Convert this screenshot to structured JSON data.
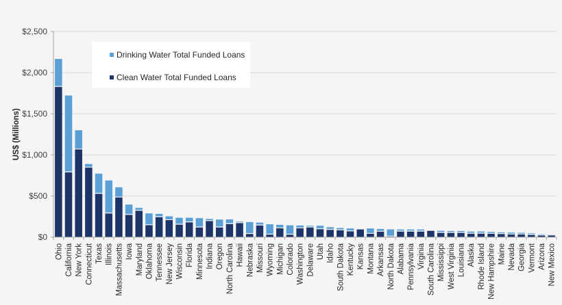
{
  "chart_data": {
    "type": "bar",
    "stacked": true,
    "title": "",
    "xlabel": "",
    "ylabel": "US$ (Millions)",
    "ylim": [
      0,
      2500
    ],
    "yticks": [
      "$0",
      "$500",
      "$1,000",
      "$1,500",
      "$2,000",
      "$2,500"
    ],
    "ytick_values": [
      0,
      500,
      1000,
      1500,
      2000,
      2500
    ],
    "grid": true,
    "legend_position": "upper-left-inside",
    "categories": [
      "Ohio",
      "California",
      "New York",
      "Connecticut",
      "Texas",
      "Illinois",
      "Massachusetts",
      "Iowa",
      "Maryland",
      "Oklahoma",
      "Tennessee",
      "New Jersey",
      "Wisconsin",
      "Florida",
      "Minnesota",
      "Indiana",
      "Oregon",
      "North Carolina",
      "Hawaii",
      "Nebraska",
      "Missouri",
      "Wyoming",
      "Michigan",
      "Colorado",
      "Washington",
      "Delaware",
      "Utah",
      "Idaho",
      "South Dakota",
      "Kentucky",
      "Kansas",
      "Montana",
      "Arkansas",
      "North Dakota",
      "Alabama",
      "Pennsylvania",
      "Virginia",
      "South Carolina",
      "Mississippi",
      "West Virginia",
      "Louisiana",
      "Alaska",
      "Rhode Island",
      "New Hampshire",
      "Maine",
      "Nevada",
      "Georgia",
      "Vermont",
      "Arizona",
      "New Mexico"
    ],
    "series": [
      {
        "name": "Clean Water Total Funded Loans",
        "color": "#1c3468",
        "values": [
          1828,
          789,
          1067,
          846,
          528,
          289,
          483,
          272,
          322,
          147,
          244,
          208,
          153,
          181,
          119,
          197,
          119,
          160,
          172,
          40,
          143,
          32,
          108,
          31,
          108,
          119,
          98,
          90,
          84,
          72,
          94,
          42,
          67,
          8,
          69,
          69,
          69,
          78,
          53,
          53,
          53,
          43,
          44,
          42,
          39,
          33,
          33,
          28,
          22,
          22
        ]
      },
      {
        "name": "Drinking Water Total Funded Loans",
        "color": "#5a9fd6",
        "values": [
          339,
          933,
          233,
          43,
          244,
          400,
          123,
          124,
          34,
          142,
          39,
          45,
          83,
          55,
          112,
          25,
          95,
          56,
          17,
          143,
          34,
          125,
          42,
          113,
          34,
          20,
          41,
          31,
          27,
          34,
          0,
          64,
          33,
          86,
          25,
          25,
          25,
          5,
          25,
          22,
          22,
          25,
          25,
          22,
          19,
          23,
          20,
          19,
          14,
          11
        ]
      }
    ],
    "totals": [
      2167,
      1722,
      1300,
      889,
      772,
      689,
      606,
      396,
      356,
      289,
      283,
      253,
      236,
      236,
      231,
      222,
      214,
      216,
      189,
      183,
      177,
      157,
      150,
      144,
      142,
      139,
      139,
      121,
      111,
      106,
      94,
      106,
      100,
      94,
      94,
      94,
      94,
      83,
      78,
      75,
      75,
      68,
      69,
      64,
      58,
      56,
      53,
      47,
      36,
      33
    ]
  },
  "legend": {
    "items": [
      {
        "label": "Drinking Water Total Funded Loans",
        "color": "#5a9fd6"
      },
      {
        "label": "Clean Water Total Funded Loans",
        "color": "#1c3468"
      }
    ]
  }
}
